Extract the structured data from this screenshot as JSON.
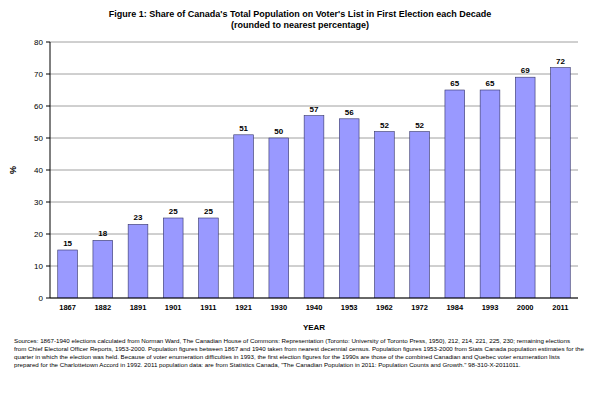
{
  "chart_data": {
    "type": "bar",
    "title": "Figure 1: Share of Canada's Total Population on Voter's List in First Election each Decade",
    "subtitle": "(rounded to nearest percentage)",
    "x_label": "YEAR",
    "y_label": "%",
    "categories": [
      "1867",
      "1882",
      "1891",
      "1901",
      "1911",
      "1921",
      "1930",
      "1940",
      "1953",
      "1962",
      "1972",
      "1984",
      "1993",
      "2000",
      "2011"
    ],
    "values": [
      15,
      18,
      23,
      25,
      25,
      51,
      50,
      57,
      56,
      52,
      52,
      65,
      65,
      69,
      72
    ],
    "color": "#9999ff",
    "ylim": [
      0,
      80
    ],
    "yticks": [
      0,
      10,
      20,
      30,
      40,
      50,
      60,
      70,
      80
    ],
    "grid": true,
    "data_labels": true,
    "note": "Sources: 1867-1940 elections calculated from Norman Ward, The Canadian House of Commons: Representation (Toronto: University of Toronto Press, 1950), 212, 214, 221, 225, 230; remaining elections from Chief Electoral Officer Reports, 1953-2000. Population figures between 1867 and 1940 taken from nearest decennial census. Population figures 1953-2000 from Stats Canada population estimates for the quarter in which the election was held. Because of voter enumeration difficulties in 1993, the first election figures for the 1990s are those of the combined Canadian and Quebec voter enumeration lists prepared for the Charlottetown Accord in 1992. 2011 population data: are from Statistics Canada, \"The Canadian Population in 2011: Population Counts and Growth.\" 98-310-X-2011011."
  }
}
